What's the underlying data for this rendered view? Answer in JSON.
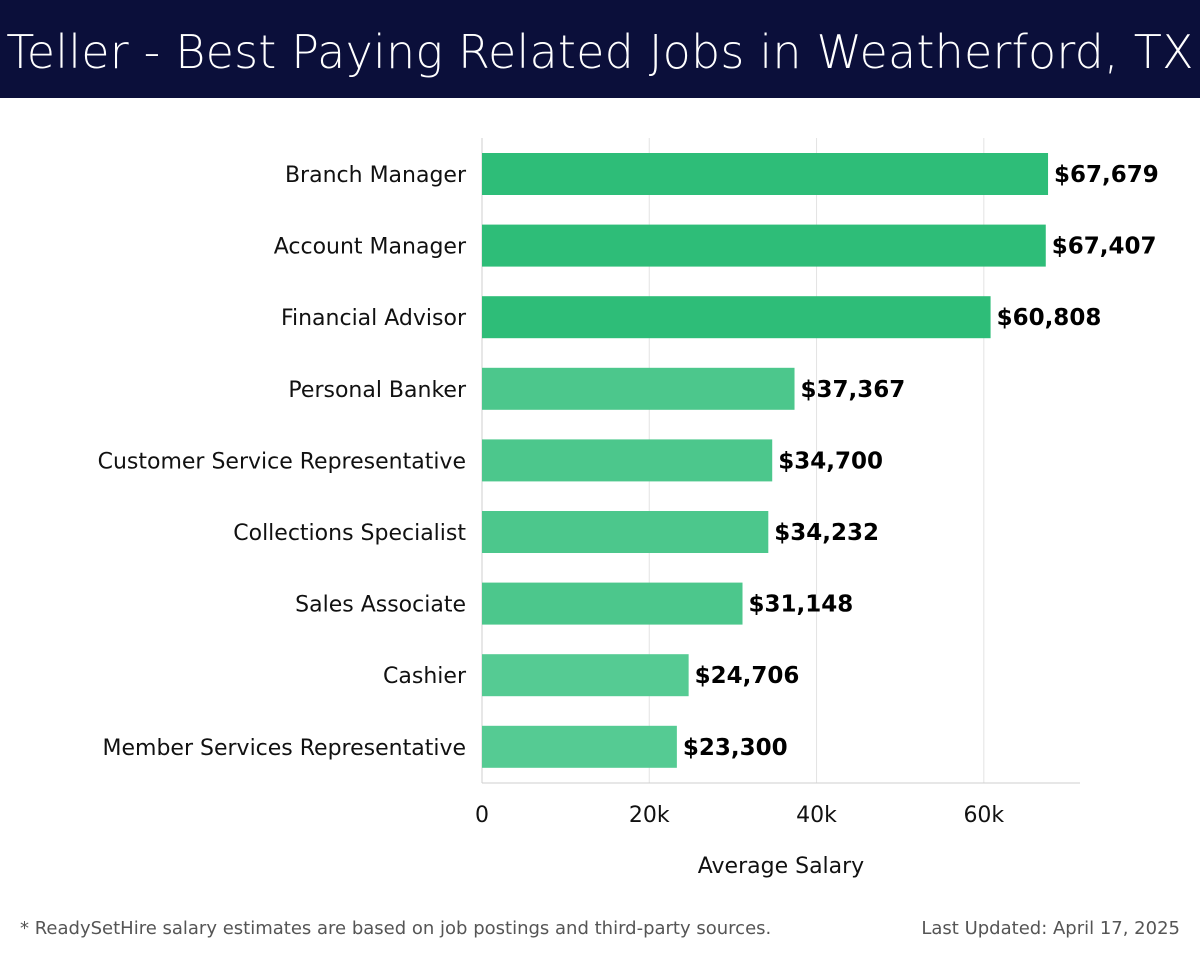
{
  "header": {
    "title": "Teller - Best Paying Related Jobs in Weatherford, TX"
  },
  "chart_data": {
    "type": "bar",
    "orientation": "horizontal",
    "title": "Teller - Best Paying Related Jobs in Weatherford, TX",
    "xlabel": "Average Salary",
    "ylabel": "",
    "categories": [
      "Branch Manager",
      "Account Manager",
      "Financial Advisor",
      "Personal Banker",
      "Customer Service Representative",
      "Collections Specialist",
      "Sales Associate",
      "Cashier",
      "Member Services Representative"
    ],
    "values": [
      67679,
      67407,
      60808,
      37367,
      34700,
      34232,
      31148,
      24706,
      23300
    ],
    "value_labels": [
      "$67,679",
      "$67,407",
      "$60,808",
      "$37,367",
      "$34,700",
      "$34,232",
      "$31,148",
      "$24,706",
      "$23,300"
    ],
    "xlim": [
      0,
      71500
    ],
    "xticks": [
      0,
      20000,
      40000,
      60000
    ],
    "xtick_labels": [
      "0",
      "20k",
      "40k",
      "60k"
    ],
    "grid": true,
    "colors": {
      "high": "#2ebd78",
      "mid": "#4cc78c",
      "low": "#55cb93",
      "grid": "#e3e3e3",
      "axis": "#cfcfcf"
    }
  },
  "footer": {
    "note": "* ReadySetHire salary estimates are based on job postings and third-party sources.",
    "updated": "Last Updated: April 17, 2025"
  }
}
